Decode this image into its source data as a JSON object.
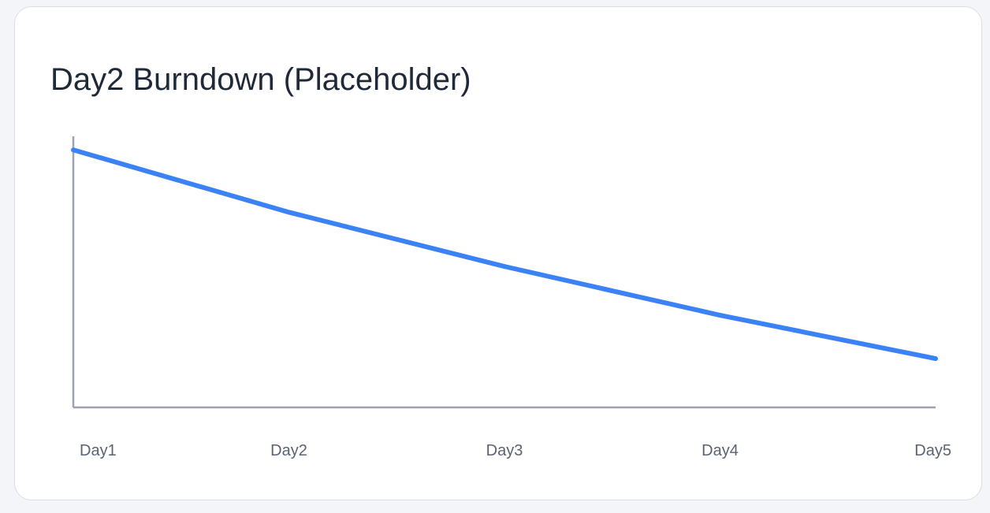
{
  "card": {
    "title": "Day2 Burndown (Placeholder)"
  },
  "colors": {
    "line": "#3b82f6",
    "axis": "#9ca3af",
    "tick_text": "#5b6270",
    "title_text": "#1f2937"
  },
  "chart_data": {
    "type": "line",
    "title": "Day2 Burndown (Placeholder)",
    "xlabel": "",
    "ylabel": "",
    "categories": [
      "Day1",
      "Day2",
      "Day3",
      "Day4",
      "Day5"
    ],
    "series": [
      {
        "values": [
          95,
          72,
          52,
          34,
          18
        ]
      }
    ],
    "ylim": [
      0,
      100
    ],
    "grid": false,
    "legend": "none"
  }
}
